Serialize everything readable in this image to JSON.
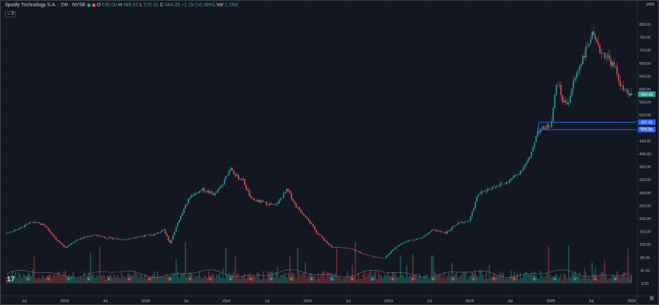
{
  "legend": {
    "title": "Spotify Technology S.A. · 1W · NYSE",
    "open_label": "O",
    "open": "580.00",
    "high_label": "H",
    "high": "588.52",
    "low_label": "L",
    "low": "576.31",
    "close_label": "C",
    "close": "584.35",
    "change": "+2.19 (+0.38%)",
    "vol_label": "Vol",
    "vol": "3.19M",
    "indicator_count": "5"
  },
  "scale": {
    "currency": "USD",
    "y_ticks": [
      "800.00",
      "760.00",
      "720.00",
      "680.00",
      "640.00",
      "600.00",
      "560.00",
      "520.00",
      "480.00",
      "440.00",
      "400.00",
      "360.00",
      "320.00",
      "280.00",
      "240.00",
      "200.00",
      "160.00",
      "120.00",
      "80.00",
      "40.00",
      "0.00"
    ],
    "x_ticks": [
      "Jul",
      "2019",
      "Jul",
      "2020",
      "Jul",
      "2021",
      "Jul",
      "2022",
      "Jul",
      "2023",
      "Jul",
      "2024",
      "Jul",
      "2025",
      "Jul",
      "2026"
    ],
    "last_price_label": "584.35",
    "zone_upper_label": "497.91",
    "zone_lower_label": "475.00"
  },
  "colors": {
    "up": "#26a69a",
    "down": "#ef5350",
    "zone": "#2962ff",
    "background": "#131722"
  },
  "chart_data": {
    "type": "candlestick",
    "interval": "1W",
    "ylim": [
      0,
      820
    ],
    "x": [
      "2018-04",
      "2018-07",
      "2019-01",
      "2019-07",
      "2020-01",
      "2020-07",
      "2021-01",
      "2021-07",
      "2022-01",
      "2022-07",
      "2023-01",
      "2023-07",
      "2024-01",
      "2024-07",
      "2025-01",
      "2025-07",
      "2026-01"
    ],
    "close_path": [
      [
        2018.28,
        155
      ],
      [
        2018.45,
        170
      ],
      [
        2018.6,
        190
      ],
      [
        2018.75,
        180
      ],
      [
        2018.9,
        135
      ],
      [
        2019.0,
        110
      ],
      [
        2019.15,
        135
      ],
      [
        2019.35,
        150
      ],
      [
        2019.55,
        140
      ],
      [
        2019.75,
        135
      ],
      [
        2019.9,
        145
      ],
      [
        2020.1,
        150
      ],
      [
        2020.22,
        165
      ],
      [
        2020.3,
        125
      ],
      [
        2020.4,
        190
      ],
      [
        2020.55,
        270
      ],
      [
        2020.7,
        290
      ],
      [
        2020.85,
        275
      ],
      [
        2020.95,
        305
      ],
      [
        2021.05,
        360
      ],
      [
        2021.12,
        330
      ],
      [
        2021.2,
        320
      ],
      [
        2021.3,
        260
      ],
      [
        2021.45,
        250
      ],
      [
        2021.6,
        240
      ],
      [
        2021.75,
        290
      ],
      [
        2021.85,
        240
      ],
      [
        2022.0,
        200
      ],
      [
        2022.1,
        160
      ],
      [
        2022.3,
        110
      ],
      [
        2022.5,
        110
      ],
      [
        2022.7,
        90
      ],
      [
        2022.85,
        80
      ],
      [
        2022.95,
        78
      ],
      [
        2023.05,
        105
      ],
      [
        2023.2,
        130
      ],
      [
        2023.4,
        140
      ],
      [
        2023.55,
        165
      ],
      [
        2023.7,
        155
      ],
      [
        2023.85,
        185
      ],
      [
        2024.0,
        195
      ],
      [
        2024.1,
        275
      ],
      [
        2024.3,
        300
      ],
      [
        2024.45,
        310
      ],
      [
        2024.6,
        340
      ],
      [
        2024.75,
        390
      ],
      [
        2024.83,
        470
      ],
      [
        2024.92,
        480
      ],
      [
        2025.0,
        490
      ],
      [
        2025.08,
        630
      ],
      [
        2025.15,
        560
      ],
      [
        2025.22,
        560
      ],
      [
        2025.28,
        620
      ],
      [
        2025.38,
        690
      ],
      [
        2025.45,
        730
      ],
      [
        2025.5,
        770
      ],
      [
        2025.6,
        720
      ],
      [
        2025.7,
        700
      ],
      [
        2025.8,
        660
      ],
      [
        2025.88,
        600
      ],
      [
        2025.95,
        584.35
      ]
    ],
    "volume_scale": "relative"
  }
}
